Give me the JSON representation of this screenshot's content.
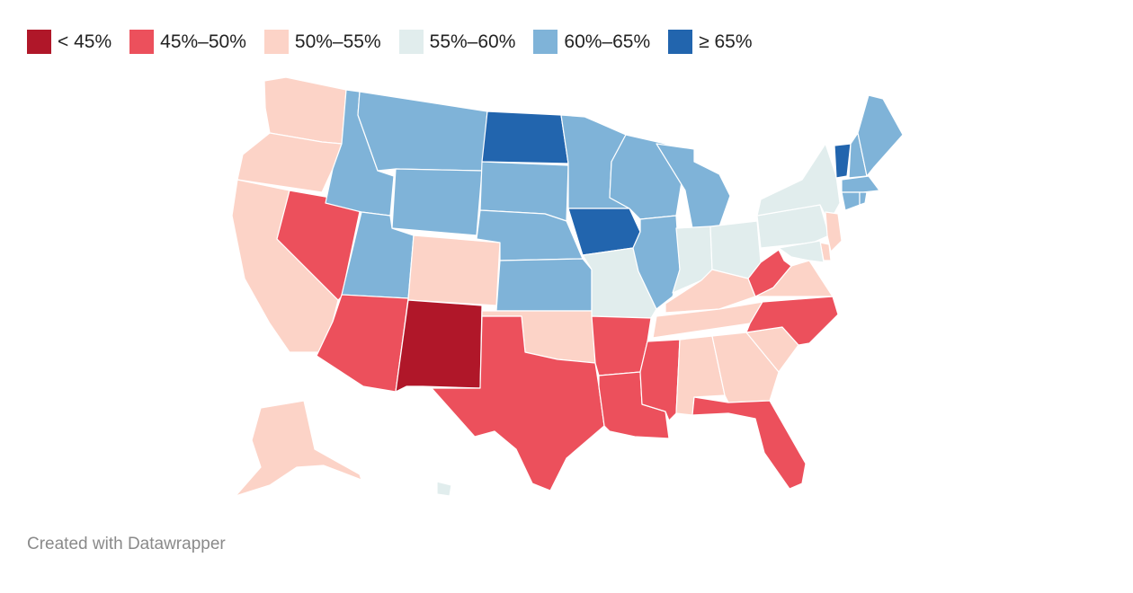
{
  "legend": [
    {
      "label": "< 45%",
      "color": "#b01729"
    },
    {
      "label": "45%–50%",
      "color": "#ec505c"
    },
    {
      "label": "50%–55%",
      "color": "#fcd3c7"
    },
    {
      "label": "55%–60%",
      "color": "#e1eded"
    },
    {
      "label": "60%–65%",
      "color": "#7fb3d8"
    },
    {
      "label": "≥ 65%",
      "color": "#2265ae"
    }
  ],
  "states": [
    {
      "name": "Washington",
      "bin": 2
    },
    {
      "name": "Oregon",
      "bin": 2
    },
    {
      "name": "California",
      "bin": 2
    },
    {
      "name": "Nevada",
      "bin": 1
    },
    {
      "name": "Idaho",
      "bin": 4
    },
    {
      "name": "Montana",
      "bin": 4
    },
    {
      "name": "Wyoming",
      "bin": 4
    },
    {
      "name": "Utah",
      "bin": 4
    },
    {
      "name": "Arizona",
      "bin": 1
    },
    {
      "name": "Colorado",
      "bin": 2
    },
    {
      "name": "New Mexico",
      "bin": 0
    },
    {
      "name": "North Dakota",
      "bin": 5
    },
    {
      "name": "South Dakota",
      "bin": 4
    },
    {
      "name": "Nebraska",
      "bin": 4
    },
    {
      "name": "Kansas",
      "bin": 4
    },
    {
      "name": "Oklahoma",
      "bin": 2
    },
    {
      "name": "Texas",
      "bin": 1
    },
    {
      "name": "Minnesota",
      "bin": 4
    },
    {
      "name": "Iowa",
      "bin": 5
    },
    {
      "name": "Missouri",
      "bin": 3
    },
    {
      "name": "Arkansas",
      "bin": 1
    },
    {
      "name": "Louisiana",
      "bin": 1
    },
    {
      "name": "Wisconsin",
      "bin": 4
    },
    {
      "name": "Illinois",
      "bin": 4
    },
    {
      "name": "Michigan",
      "bin": 4
    },
    {
      "name": "Indiana",
      "bin": 3
    },
    {
      "name": "Ohio",
      "bin": 3
    },
    {
      "name": "Kentucky",
      "bin": 2
    },
    {
      "name": "Tennessee",
      "bin": 2
    },
    {
      "name": "Mississippi",
      "bin": 1
    },
    {
      "name": "Alabama",
      "bin": 2
    },
    {
      "name": "Georgia",
      "bin": 2
    },
    {
      "name": "Florida",
      "bin": 1
    },
    {
      "name": "South Carolina",
      "bin": 2
    },
    {
      "name": "North Carolina",
      "bin": 1
    },
    {
      "name": "Virginia",
      "bin": 2
    },
    {
      "name": "West Virginia",
      "bin": 1
    },
    {
      "name": "Pennsylvania",
      "bin": 3
    },
    {
      "name": "New York",
      "bin": 3
    },
    {
      "name": "New Jersey",
      "bin": 2
    },
    {
      "name": "Delaware",
      "bin": 2
    },
    {
      "name": "Maryland",
      "bin": 3
    },
    {
      "name": "Vermont",
      "bin": 5
    },
    {
      "name": "New Hampshire",
      "bin": 4
    },
    {
      "name": "Maine",
      "bin": 4
    },
    {
      "name": "Massachusetts",
      "bin": 4
    },
    {
      "name": "Connecticut",
      "bin": 4
    },
    {
      "name": "Rhode Island",
      "bin": 4
    },
    {
      "name": "Alaska",
      "bin": 2
    },
    {
      "name": "Hawaii",
      "bin": 3
    }
  ],
  "credit": "Created with Datawrapper"
}
